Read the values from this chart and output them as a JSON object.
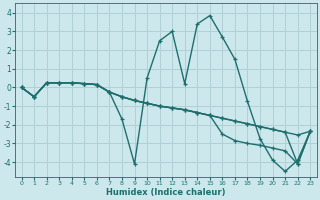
{
  "xlabel": "Humidex (Indice chaleur)",
  "ylabel": "",
  "xlim": [
    -0.5,
    23.5
  ],
  "ylim": [
    -4.8,
    4.5
  ],
  "yticks": [
    -4,
    -3,
    -2,
    -1,
    0,
    1,
    2,
    3,
    4
  ],
  "xticks": [
    0,
    1,
    2,
    3,
    4,
    5,
    6,
    7,
    8,
    9,
    10,
    11,
    12,
    13,
    14,
    15,
    16,
    17,
    18,
    19,
    20,
    21,
    22,
    23
  ],
  "bg_color": "#cde8ec",
  "grid_color": "#b0d0d5",
  "line_color": "#1e6e6e",
  "marker": "+",
  "line_width": 1.0,
  "lines": [
    [
      0.0,
      -0.5,
      0.25,
      0.25,
      0.25,
      0.2,
      0.15,
      -0.25,
      -1.7,
      -4.1,
      0.5,
      2.5,
      3.0,
      0.2,
      3.4,
      3.85,
      2.7,
      1.5,
      -0.75,
      -2.75,
      -3.9,
      -4.5,
      -3.9,
      -2.35
    ],
    [
      0.0,
      -0.5,
      0.25,
      0.25,
      0.25,
      0.2,
      0.15,
      -0.25,
      -0.5,
      -0.7,
      -0.85,
      -1.0,
      -1.1,
      -1.2,
      -1.35,
      -1.5,
      -1.65,
      -1.8,
      -1.95,
      -2.1,
      -2.25,
      -2.4,
      -2.55,
      -2.35
    ],
    [
      0.0,
      -0.5,
      0.25,
      0.25,
      0.25,
      0.2,
      0.15,
      -0.25,
      -0.5,
      -0.7,
      -0.85,
      -1.0,
      -1.1,
      -1.2,
      -1.35,
      -1.5,
      -2.5,
      -2.85,
      -3.0,
      -3.1,
      -3.25,
      -3.4,
      -4.1,
      -2.35
    ],
    [
      0.0,
      -0.5,
      0.25,
      0.25,
      0.25,
      0.2,
      0.15,
      -0.25,
      -0.5,
      -0.7,
      -0.85,
      -1.0,
      -1.1,
      -1.2,
      -1.35,
      -1.5,
      -1.65,
      -1.8,
      -1.95,
      -2.1,
      -2.25,
      -2.4,
      -4.1,
      -2.35
    ]
  ],
  "x_values": [
    0,
    1,
    2,
    3,
    4,
    5,
    6,
    7,
    8,
    9,
    10,
    11,
    12,
    13,
    14,
    15,
    16,
    17,
    18,
    19,
    20,
    21,
    22,
    23
  ]
}
